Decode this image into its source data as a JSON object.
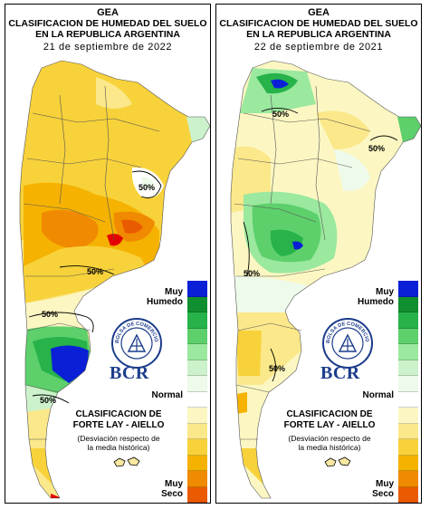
{
  "left": {
    "title_line1": "GEA",
    "title_line2": "CLASIFICACION DE HUMEDAD DEL SUELO",
    "title_line3": "EN LA REPUBLICA ARGENTINA",
    "date": "21 de septiembre de 2022",
    "isolines": [
      "50%",
      "50%",
      "50%",
      "50%"
    ]
  },
  "right": {
    "title_line1": "GEA",
    "title_line2": "CLASIFICACION DE HUMEDAD DEL SUELO",
    "title_line3": "EN LA REPUBLICA ARGENTINA",
    "date": "22 de septiembre de 2021",
    "isolines": [
      "50%",
      "50%",
      "50%",
      "50%"
    ]
  },
  "legend": {
    "muy": "Muy",
    "humedo": "Humedo",
    "normal": "Normal",
    "muy_seco_top": "Muy",
    "seco": "Seco",
    "colors": [
      "#0a1fd6",
      "#0f8f2f",
      "#27b24a",
      "#5dd06b",
      "#9be89f",
      "#ccf2cc",
      "#eefaea",
      "#ffffff",
      "#fcf7c2",
      "#fbe88a",
      "#f8d23a",
      "#f5b200",
      "#f08a00",
      "#ea5a00",
      "#e40000"
    ]
  },
  "branding": {
    "logo_text": "BOLSA DE COMERCIO DE ROSARIO",
    "bcr": "BCR",
    "clasificacion": "CLASIFICACION DE",
    "forte": "FORTE LAY - AIELLO",
    "desviacion": "(Desviación respecto de",
    "media": "la media histórica)"
  }
}
